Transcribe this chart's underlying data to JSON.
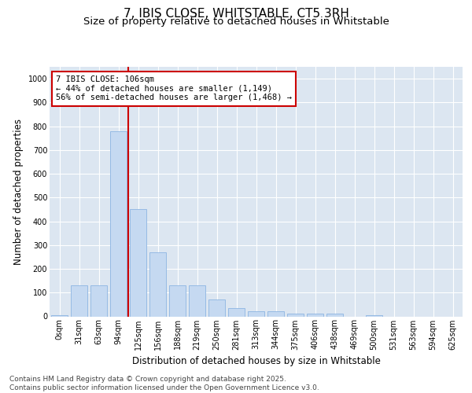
{
  "title": "7, IBIS CLOSE, WHITSTABLE, CT5 3RH",
  "subtitle": "Size of property relative to detached houses in Whitstable",
  "xlabel": "Distribution of detached houses by size in Whitstable",
  "ylabel": "Number of detached properties",
  "categories": [
    "0sqm",
    "31sqm",
    "63sqm",
    "94sqm",
    "125sqm",
    "156sqm",
    "188sqm",
    "219sqm",
    "250sqm",
    "281sqm",
    "313sqm",
    "344sqm",
    "375sqm",
    "406sqm",
    "438sqm",
    "469sqm",
    "500sqm",
    "531sqm",
    "563sqm",
    "594sqm",
    "625sqm"
  ],
  "values": [
    5,
    130,
    130,
    780,
    450,
    270,
    130,
    130,
    70,
    35,
    20,
    20,
    10,
    10,
    10,
    0,
    5,
    0,
    0,
    0,
    0
  ],
  "bar_color": "#c5d9f1",
  "bar_edge_color": "#8db4e2",
  "vline_x": 3.5,
  "vline_color": "#cc0000",
  "annotation_text": "7 IBIS CLOSE: 106sqm\n← 44% of detached houses are smaller (1,149)\n56% of semi-detached houses are larger (1,468) →",
  "ylim": [
    0,
    1050
  ],
  "yticks": [
    0,
    100,
    200,
    300,
    400,
    500,
    600,
    700,
    800,
    900,
    1000
  ],
  "plot_bg_color": "#dce6f1",
  "fig_bg_color": "#ffffff",
  "grid_color": "#ffffff",
  "footer": "Contains HM Land Registry data © Crown copyright and database right 2025.\nContains public sector information licensed under the Open Government Licence v3.0.",
  "title_fontsize": 11,
  "subtitle_fontsize": 9.5,
  "axis_label_fontsize": 8.5,
  "tick_fontsize": 7,
  "annotation_fontsize": 7.5,
  "footer_fontsize": 6.5
}
